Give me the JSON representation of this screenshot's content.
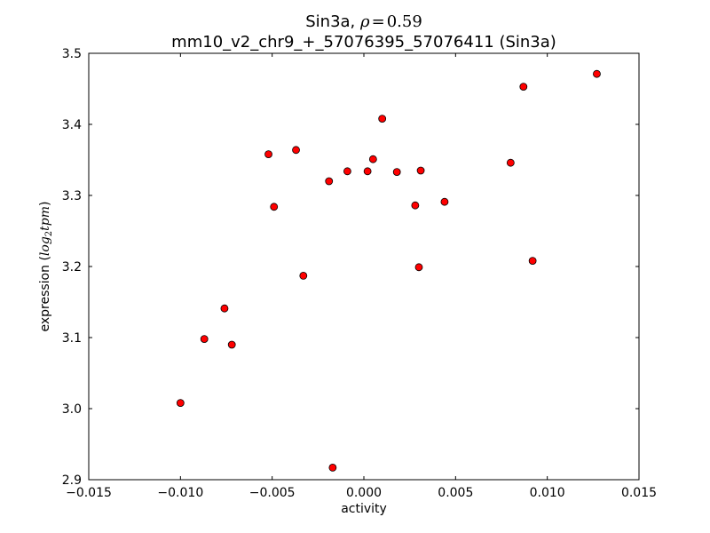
{
  "chart_data": {
    "type": "scatter",
    "title_line1_prefix": "Sin3a, ",
    "title_line1_rho_symbol": "ρ",
    "title_line1_rho_eq": "=",
    "title_line1_rho_value": "0.59",
    "title_line2": "mm10_v2_chr9_+_57076395_57076411 (Sin3a)",
    "xlabel": "activity",
    "ylabel_prefix": "expression (",
    "ylabel_log": "log",
    "ylabel_sub": "2",
    "ylabel_tpm": "tpm",
    "ylabel_suffix": ")",
    "xlim": [
      -0.015,
      0.015
    ],
    "ylim": [
      2.9,
      3.5
    ],
    "xticks": [
      -0.015,
      -0.01,
      -0.005,
      0.0,
      0.005,
      0.01,
      0.015
    ],
    "xtick_labels": [
      "−0.015",
      "−0.010",
      "−0.005",
      "0.000",
      "0.005",
      "0.010",
      "0.015"
    ],
    "yticks": [
      2.9,
      3.0,
      3.1,
      3.2,
      3.3,
      3.4,
      3.5
    ],
    "ytick_labels": [
      "2.9",
      "3.0",
      "3.1",
      "3.2",
      "3.3",
      "3.4",
      "3.5"
    ],
    "grid": false,
    "marker_color": "#ff0000",
    "marker_edge_color": "#000000",
    "points": [
      {
        "x": -0.01,
        "y": 3.008
      },
      {
        "x": -0.0087,
        "y": 3.098
      },
      {
        "x": -0.0076,
        "y": 3.141
      },
      {
        "x": -0.0072,
        "y": 3.09
      },
      {
        "x": -0.0052,
        "y": 3.358
      },
      {
        "x": -0.0049,
        "y": 3.284
      },
      {
        "x": -0.0037,
        "y": 3.364
      },
      {
        "x": -0.0033,
        "y": 3.187
      },
      {
        "x": -0.0019,
        "y": 3.32
      },
      {
        "x": -0.0017,
        "y": 2.917
      },
      {
        "x": -0.0009,
        "y": 3.334
      },
      {
        "x": 0.0002,
        "y": 3.334
      },
      {
        "x": 0.0005,
        "y": 3.351
      },
      {
        "x": 0.001,
        "y": 3.408
      },
      {
        "x": 0.0018,
        "y": 3.333
      },
      {
        "x": 0.0028,
        "y": 3.286
      },
      {
        "x": 0.003,
        "y": 3.199
      },
      {
        "x": 0.0031,
        "y": 3.335
      },
      {
        "x": 0.0044,
        "y": 3.291
      },
      {
        "x": 0.008,
        "y": 3.346
      },
      {
        "x": 0.0087,
        "y": 3.453
      },
      {
        "x": 0.0092,
        "y": 3.208
      },
      {
        "x": 0.0127,
        "y": 3.471
      }
    ]
  }
}
